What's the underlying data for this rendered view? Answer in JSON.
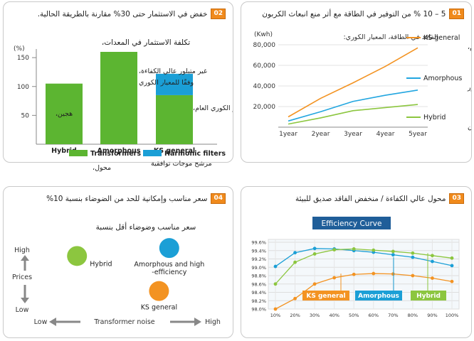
{
  "p1": {
    "num": "01",
    "title": "5 – 10 % من التوفير في الطاقة مع أثر منع انبعاث الكربون",
    "ylabel": "(Kwh)",
    "ylim": [
      0,
      80000
    ],
    "yticks": [
      "80,000",
      "60,000",
      "40,000",
      "20,000"
    ],
    "xticks": [
      "1year",
      "2year",
      "3year",
      "4year",
      "5year"
    ],
    "loss_caption_1": "الفاقد في الطاقة، المعيار الكوري:",
    "loss_caption_2": "المعيار الكوري العام،",
    "color_ks": "#f39322",
    "color_amorphous": "#22a6e0",
    "color_hybrid": "#8cc63f"
  },
  "p2": {
    "num": "02",
    "title": "خفض في الاستثمار حتى 30% مقارنة بالطريقة الحالية.",
    "subtitle": "تكلفة الاستثمار في المعدات،",
    "unit": "(%)",
    "yticks": [
      "150",
      "100",
      "50"
    ],
    "bar_labels": [
      "هجين،",
      "غير متبلور عالي الكفاءة،",
      "وفقًا للمعيار الكوري",
      "المعيار الكوري العام،"
    ],
    "transformers_ar": "محول،",
    "harmonic_ar": "مرشح موجات توافقية",
    "color_transformers": "#5cb531",
    "color_harmonic": "#1b9fd6"
  },
  "p3": {
    "num": "03",
    "title": "محول عالي الكفاءة / منخفض الفاقد صديق للبيئة",
    "curve_title": "Efficiency Curve",
    "yticks": [
      "99.6%",
      "99.4%",
      "99.2%",
      "99.0%",
      "98.8%",
      "98.6%",
      "98.4%",
      "98.2%",
      "98.0%"
    ],
    "xticks": [
      "10%",
      "20%",
      "30%",
      "40%",
      "50%",
      "60%",
      "70%",
      "80%",
      "90%",
      "100%"
    ],
    "ks_label": "KS general",
    "amorphous_label": "Amorphous",
    "hybrid_label": "Hybrid"
  },
  "p4": {
    "num": "04",
    "title": "سعر مناسب وإمكانية للحد من الضوضاء بنسبة 10%",
    "subtitle": "سعر مناسب وضوضاء أقل بنسبة",
    "y_high": "High",
    "y_low": "Low",
    "y_title": "Prices",
    "x_low": "Low",
    "x_high": "High",
    "x_title": "Transformer noise",
    "bubbles": [
      {
        "name": "Hybrid",
        "price": 0.72,
        "noise": 0.18,
        "color": "#8cc63f"
      },
      {
        "name": "Amorphous and high\n-efficiency",
        "price": 0.82,
        "noise": 0.72,
        "color": "#1b9fd6"
      },
      {
        "name": "KS general",
        "price": 0.28,
        "noise": 0.66,
        "color": "#f39322"
      }
    ]
  },
  "chart_data": [
    {
      "type": "line",
      "title": "5 – 10 % من التوفير في الطاقة مع أثر منع انبعاث الكربون",
      "ylabel": "(Kwh)",
      "ylim": [
        0,
        80000
      ],
      "categories": [
        "1year",
        "2year",
        "3year",
        "4year",
        "5year"
      ],
      "series": [
        {
          "name": "KS general",
          "name_ar": "المعيار الكوري العام،",
          "values": [
            10000,
            28000,
            43000,
            59000,
            77000
          ]
        },
        {
          "name": "Amorphous",
          "name_ar": "غير متبلور",
          "values": [
            6000,
            15000,
            25000,
            31000,
            36000
          ]
        },
        {
          "name": "Hybrid",
          "name_ar": "هجين",
          "values": [
            3000,
            9000,
            16000,
            19000,
            22000
          ]
        }
      ]
    },
    {
      "type": "bar",
      "title": "خفض في الاستثمار حتى 30% مقارنة بالطريقة الحالية.",
      "ylabel": "(%)",
      "ylim": [
        0,
        160
      ],
      "categories": [
        "Hybrid",
        "Amorphous",
        "KS general"
      ],
      "series": [
        {
          "name": "Transformers",
          "values": [
            105,
            160,
            85
          ]
        },
        {
          "name": "Harmonic filters",
          "values": [
            0,
            0,
            37
          ]
        }
      ]
    },
    {
      "type": "line",
      "title": "Efficiency Curve",
      "ylim": [
        98.0,
        99.6
      ],
      "categories": [
        "10%",
        "20%",
        "30%",
        "40%",
        "50%",
        "60%",
        "70%",
        "80%",
        "90%",
        "100%"
      ],
      "series": [
        {
          "name": "KS general",
          "values": [
            98.0,
            98.25,
            98.6,
            98.75,
            98.83,
            98.85,
            98.84,
            98.8,
            98.74,
            98.66
          ]
        },
        {
          "name": "Amorphous",
          "values": [
            99.02,
            99.35,
            99.45,
            99.44,
            99.4,
            99.36,
            99.3,
            99.24,
            99.14,
            99.04
          ]
        },
        {
          "name": "Hybrid",
          "values": [
            98.6,
            99.12,
            99.32,
            99.42,
            99.44,
            99.41,
            99.38,
            99.34,
            99.28,
            99.22
          ]
        }
      ]
    }
  ]
}
